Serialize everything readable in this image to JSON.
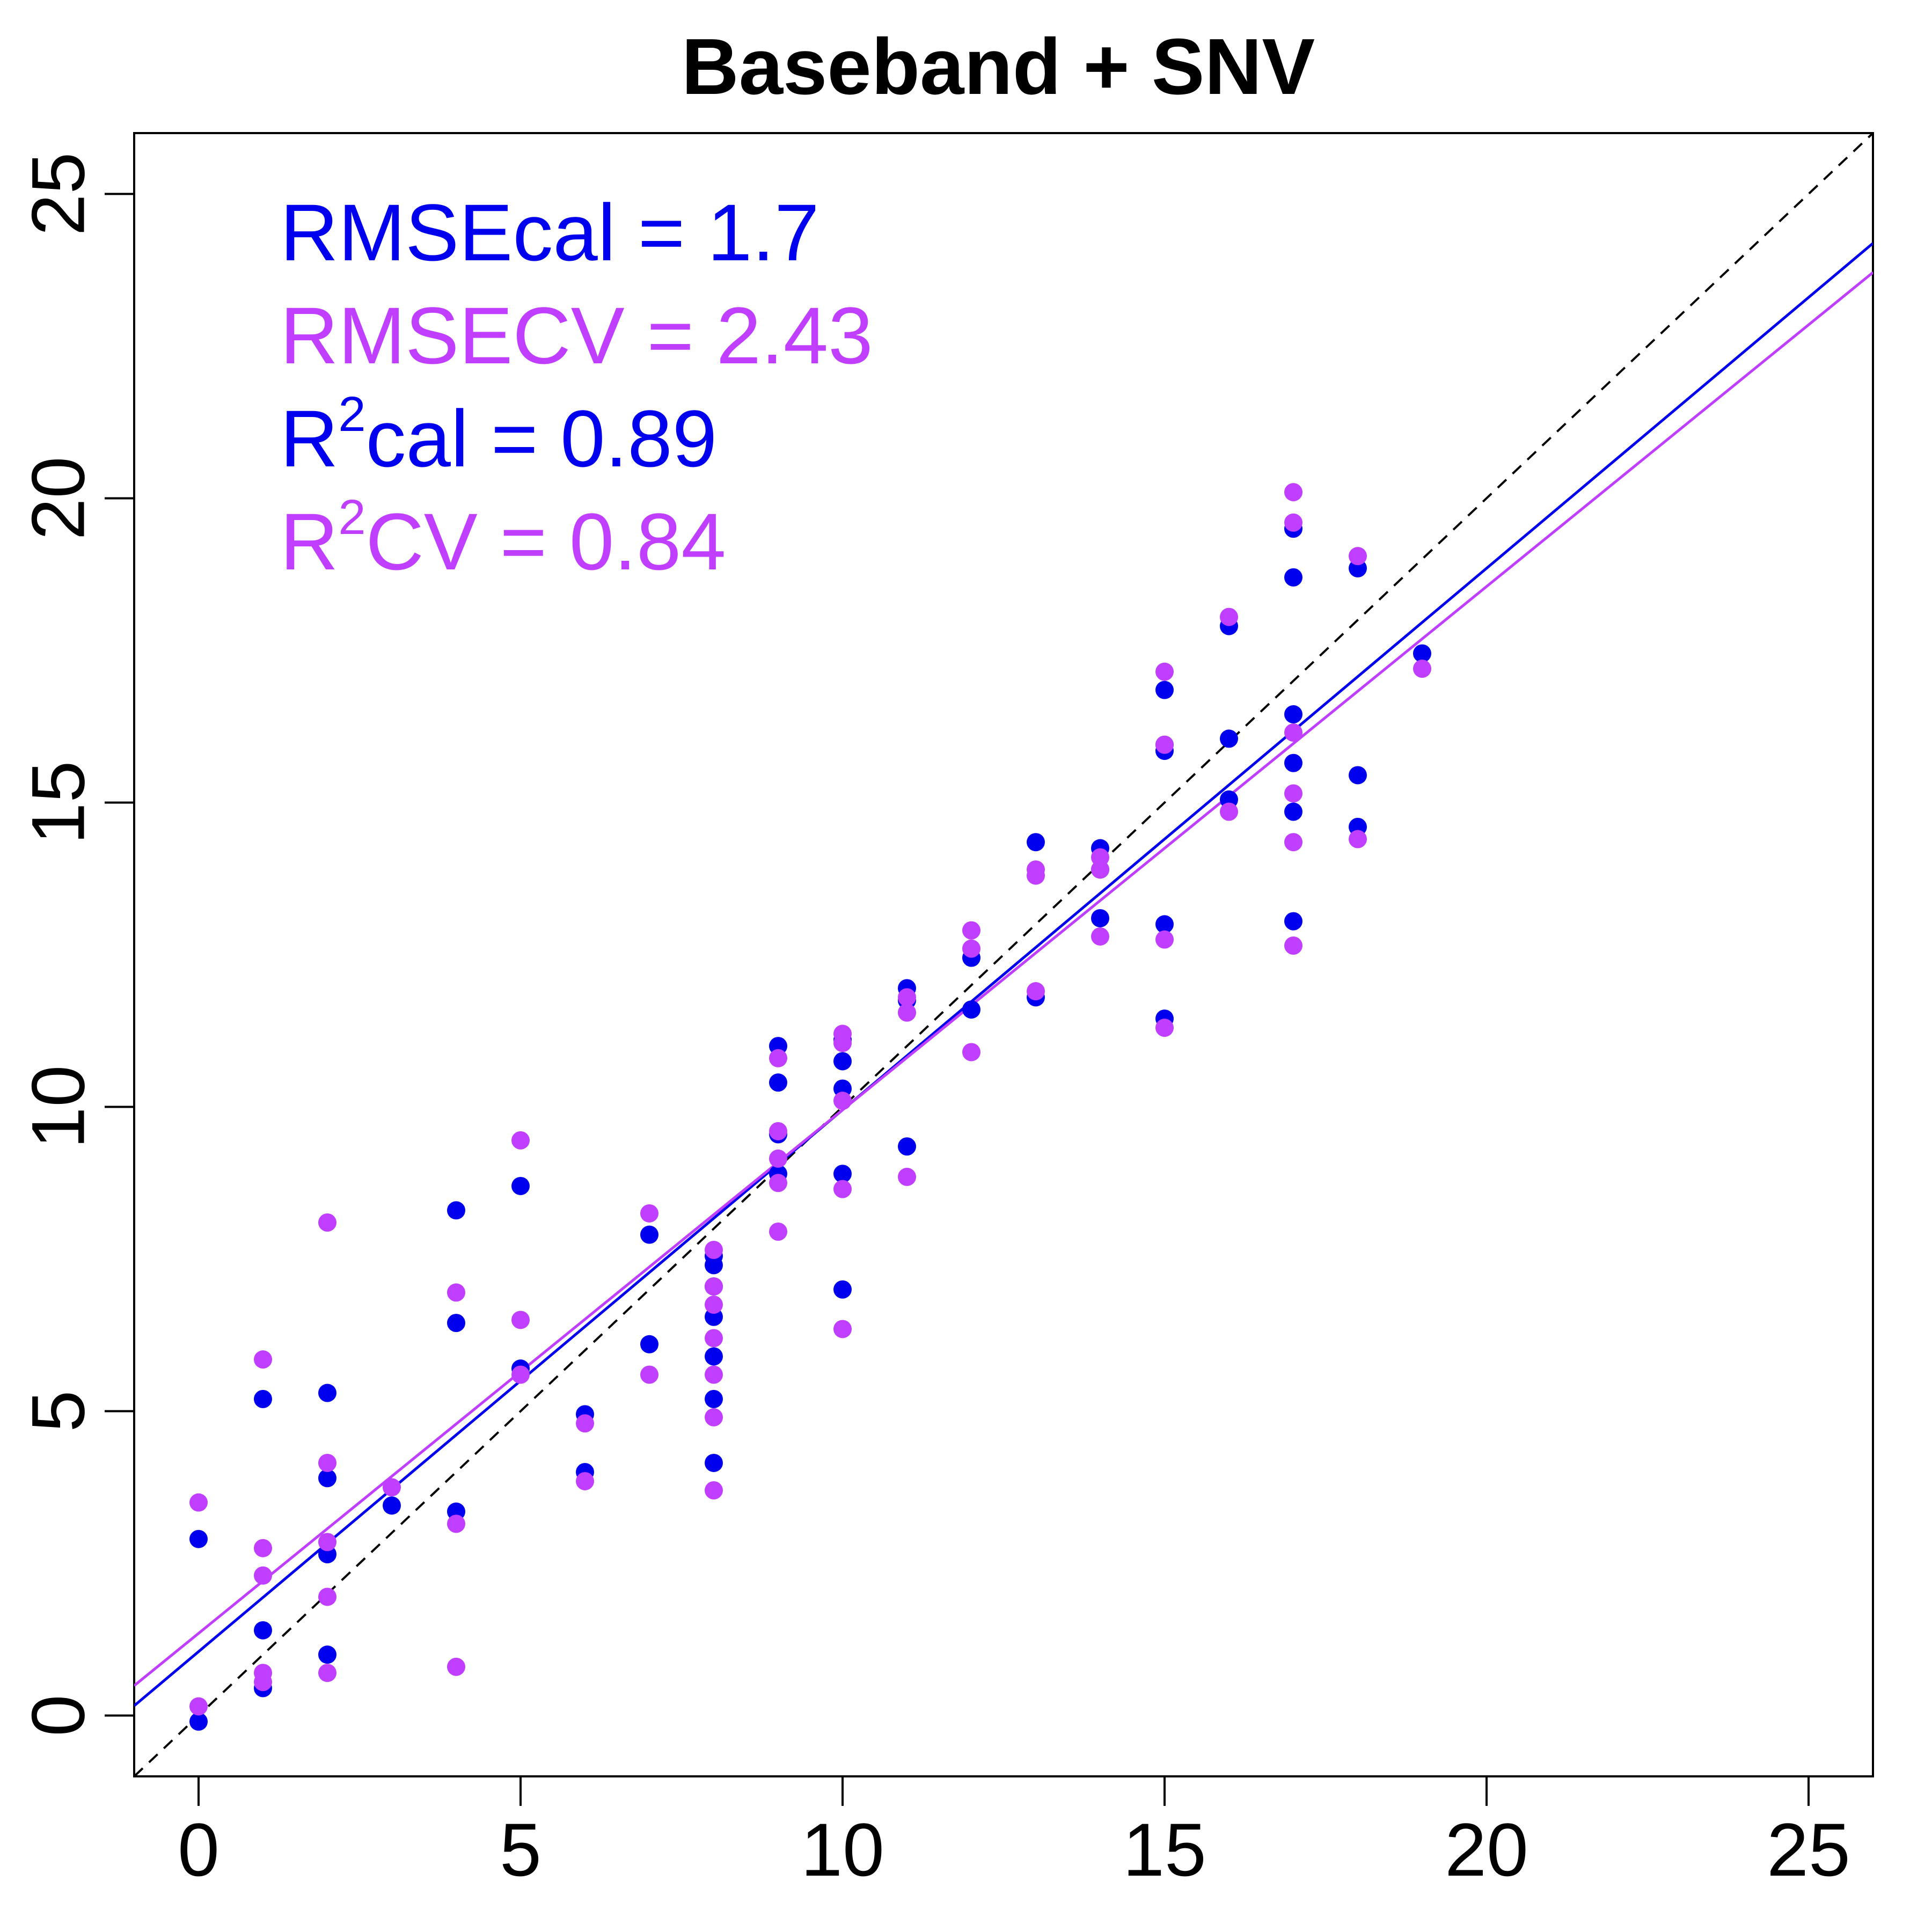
{
  "chart_data": {
    "type": "scatter",
    "title": "Baseband + SNV",
    "xlabel": "",
    "ylabel": "",
    "xlim": [
      -1,
      26
    ],
    "ylim": [
      -1,
      26
    ],
    "x_ticks": [
      0,
      5,
      10,
      15,
      20,
      25
    ],
    "y_ticks": [
      0,
      5,
      10,
      15,
      20,
      25
    ],
    "grid": false,
    "colors": {
      "cal": "#0000EE",
      "cv": "#BF3EFF",
      "identity": "#000000"
    },
    "annotations": [
      {
        "main": "RMSEcal = 1.7",
        "series": "cal"
      },
      {
        "main": "RMSECV = 2.43",
        "series": "cv"
      },
      {
        "base": "R",
        "sup": "2",
        "rest": "cal = 0.89",
        "series": "cal"
      },
      {
        "base": "R",
        "sup": "2",
        "rest": "CV = 0.84",
        "series": "cv"
      }
    ],
    "fit_lines": [
      {
        "series": "cal",
        "intercept": 1.05,
        "slope": 0.89
      },
      {
        "series": "cv",
        "intercept": 1.35,
        "slope": 0.86
      }
    ],
    "identity_line": {
      "intercept": 0,
      "slope": 1,
      "style": "dashed"
    },
    "series": [
      {
        "key": "cal",
        "x": [
          0,
          0,
          1,
          1,
          1,
          2,
          2,
          2,
          2,
          3,
          4,
          4,
          4,
          5,
          5,
          6,
          6,
          7,
          7,
          8,
          8,
          8,
          8,
          8,
          8,
          8,
          9,
          9,
          9,
          9,
          10,
          10,
          10,
          10,
          10,
          11,
          11,
          11,
          12,
          12,
          13,
          13,
          14,
          14,
          14,
          15,
          15,
          15,
          15,
          15,
          16,
          16,
          16,
          17,
          17,
          17,
          17,
          17,
          17,
          18,
          18,
          18,
          19
        ],
        "y": [
          -0.1,
          2.9,
          0.45,
          1.4,
          5.2,
          1.0,
          2.65,
          3.9,
          5.3,
          3.45,
          3.35,
          6.45,
          8.3,
          5.7,
          8.7,
          4.0,
          4.95,
          6.1,
          7.9,
          4.15,
          5.2,
          5.9,
          6.55,
          7.05,
          7.4,
          7.55,
          8.9,
          9.55,
          10.4,
          11.0,
          7.0,
          8.9,
          10.3,
          10.75,
          11.1,
          9.35,
          11.75,
          11.95,
          11.6,
          12.45,
          11.8,
          14.35,
          13.1,
          13.9,
          14.25,
          11.45,
          13.0,
          15.85,
          15.95,
          16.85,
          15.05,
          16.05,
          17.9,
          13.05,
          14.85,
          15.65,
          16.45,
          18.7,
          19.5,
          14.6,
          15.45,
          18.85,
          17.45
        ]
      },
      {
        "key": "cv",
        "x": [
          0,
          0,
          1,
          1,
          1,
          1,
          1,
          2,
          2,
          2,
          2,
          2,
          3,
          4,
          4,
          4,
          5,
          5,
          5,
          6,
          6,
          7,
          7,
          8,
          8,
          8,
          8,
          8,
          8,
          8,
          9,
          9,
          9,
          9,
          9,
          10,
          10,
          10,
          10,
          10,
          11,
          11,
          11,
          12,
          12,
          12,
          13,
          13,
          13,
          14,
          14,
          14,
          15,
          15,
          15,
          15,
          16,
          16,
          17,
          17,
          17,
          17,
          17,
          17,
          18,
          18,
          19
        ],
        "y": [
          0.15,
          3.5,
          0.55,
          0.7,
          2.3,
          2.75,
          5.85,
          0.7,
          1.95,
          2.85,
          4.15,
          8.1,
          3.75,
          0.8,
          3.15,
          6.95,
          5.6,
          6.5,
          9.45,
          3.85,
          4.8,
          5.6,
          8.25,
          3.7,
          4.9,
          5.6,
          6.2,
          6.75,
          7.05,
          7.65,
          7.95,
          8.75,
          9.15,
          9.6,
          10.8,
          6.35,
          8.65,
          10.1,
          11.05,
          11.2,
          8.85,
          11.55,
          11.8,
          10.9,
          12.6,
          12.9,
          11.9,
          13.8,
          13.9,
          12.8,
          13.9,
          14.1,
          11.3,
          12.75,
          15.95,
          17.15,
          14.85,
          18.05,
          12.65,
          14.35,
          15.15,
          16.15,
          19.6,
          20.1,
          14.4,
          19.05,
          17.2
        ]
      }
    ]
  }
}
